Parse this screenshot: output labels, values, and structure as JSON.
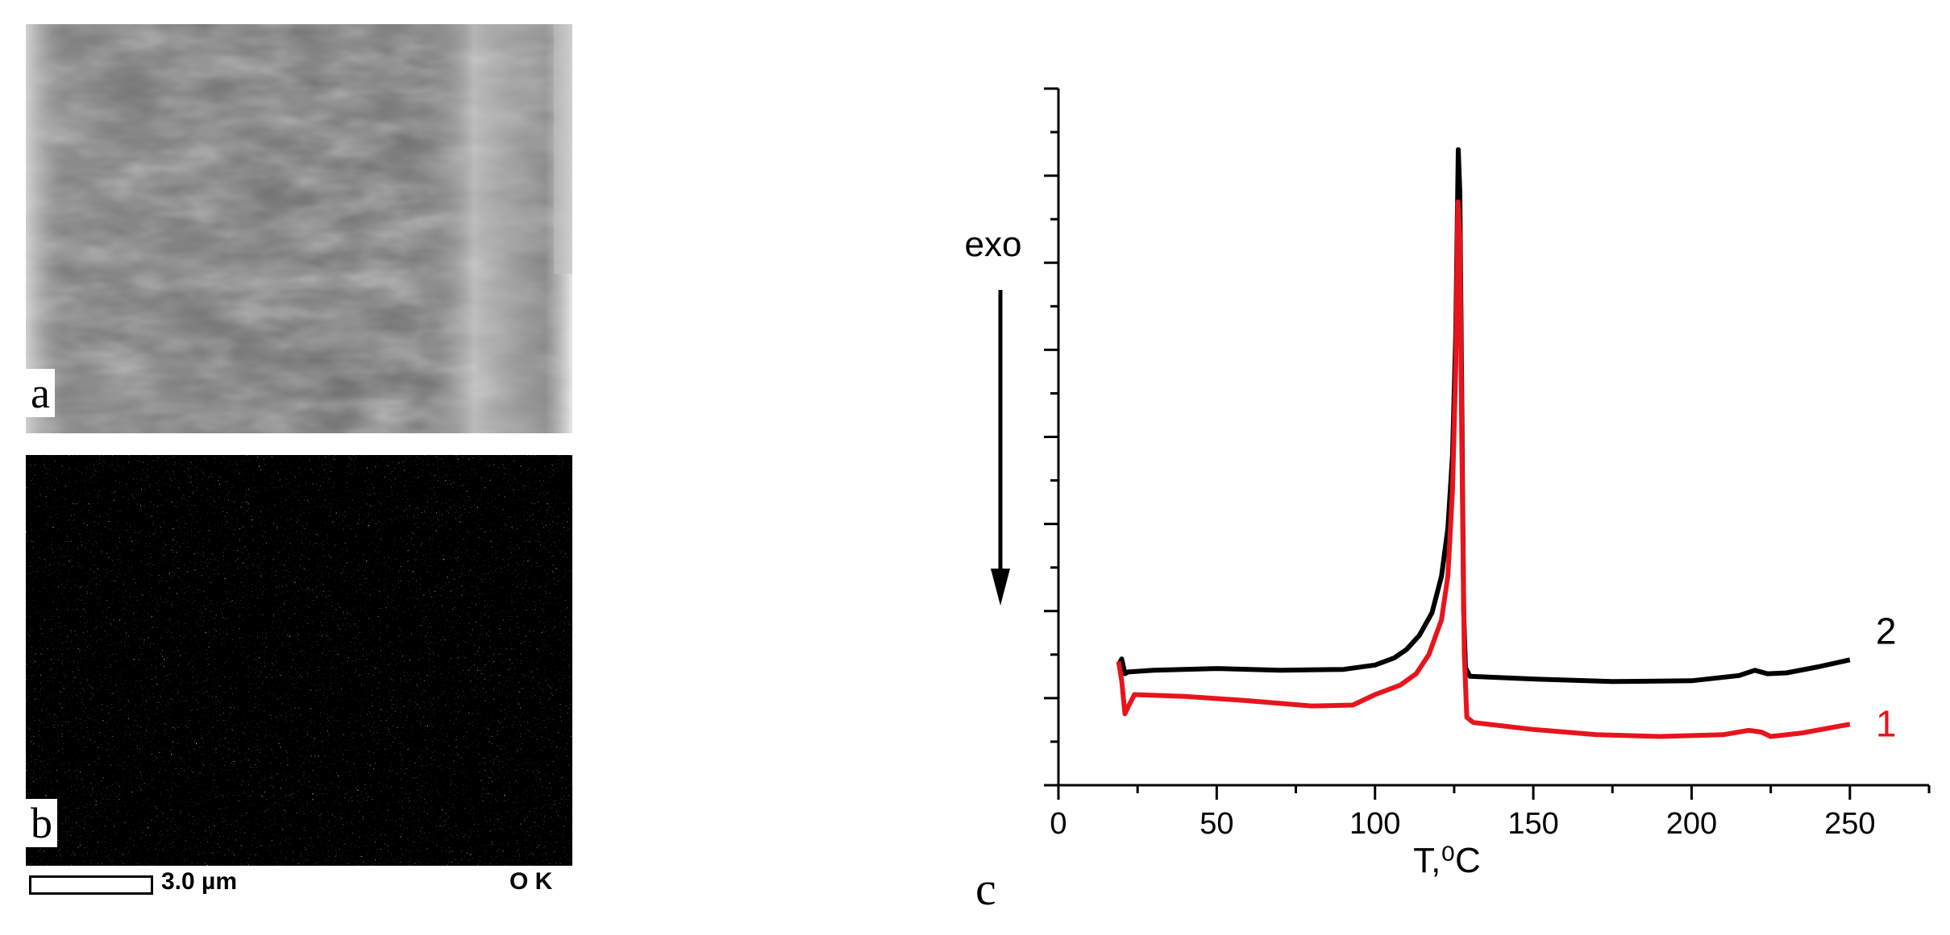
{
  "panels": {
    "a_label": "a",
    "b_label": "b",
    "c_label": "c",
    "scale_bar_text": "3.0 µm",
    "element_text": "O K"
  },
  "chart_data": {
    "type": "line",
    "xlabel": "T,⁰C",
    "ylabel": "",
    "xlim": [
      0,
      275
    ],
    "xticks": [
      0,
      50,
      100,
      150,
      200,
      250
    ],
    "ylim": [
      0,
      8
    ],
    "y_tick_labels": false,
    "annotation": "exo",
    "annotation_arrow": "down",
    "series": [
      {
        "name": "2",
        "color": "#000000",
        "points": [
          [
            19,
            1.38
          ],
          [
            20,
            1.45
          ],
          [
            21,
            1.28
          ],
          [
            22,
            1.3
          ],
          [
            30,
            1.32
          ],
          [
            50,
            1.34
          ],
          [
            70,
            1.32
          ],
          [
            90,
            1.33
          ],
          [
            100,
            1.38
          ],
          [
            106,
            1.46
          ],
          [
            110,
            1.56
          ],
          [
            114,
            1.72
          ],
          [
            118,
            1.98
          ],
          [
            121,
            2.4
          ],
          [
            123,
            2.95
          ],
          [
            124.5,
            3.8
          ],
          [
            125.5,
            5.2
          ],
          [
            126.3,
            7.3
          ],
          [
            126.8,
            6.8
          ],
          [
            127.4,
            4.5
          ],
          [
            128,
            2.0
          ],
          [
            128.6,
            1.35
          ],
          [
            130,
            1.25
          ],
          [
            150,
            1.22
          ],
          [
            175,
            1.19
          ],
          [
            200,
            1.2
          ],
          [
            215,
            1.26
          ],
          [
            220,
            1.32
          ],
          [
            224,
            1.28
          ],
          [
            230,
            1.29
          ],
          [
            240,
            1.36
          ],
          [
            250,
            1.44
          ]
        ]
      },
      {
        "name": "1",
        "color": "#e8141c",
        "points": [
          [
            19,
            1.42
          ],
          [
            20,
            1.2
          ],
          [
            21,
            0.82
          ],
          [
            22,
            0.9
          ],
          [
            24,
            1.04
          ],
          [
            40,
            1.02
          ],
          [
            60,
            0.97
          ],
          [
            80,
            0.91
          ],
          [
            93,
            0.92
          ],
          [
            100,
            1.04
          ],
          [
            108,
            1.15
          ],
          [
            113,
            1.28
          ],
          [
            117,
            1.5
          ],
          [
            121,
            1.9
          ],
          [
            123,
            2.4
          ],
          [
            124.5,
            3.4
          ],
          [
            125.5,
            4.8
          ],
          [
            126.2,
            6.7
          ],
          [
            126.8,
            6.3
          ],
          [
            127.4,
            4.0
          ],
          [
            128.2,
            1.5
          ],
          [
            129,
            0.78
          ],
          [
            131,
            0.72
          ],
          [
            150,
            0.64
          ],
          [
            170,
            0.58
          ],
          [
            190,
            0.56
          ],
          [
            210,
            0.58
          ],
          [
            218,
            0.63
          ],
          [
            222,
            0.61
          ],
          [
            225,
            0.56
          ],
          [
            235,
            0.6
          ],
          [
            250,
            0.7
          ]
        ]
      }
    ],
    "series_labels": [
      "2",
      "1"
    ]
  }
}
